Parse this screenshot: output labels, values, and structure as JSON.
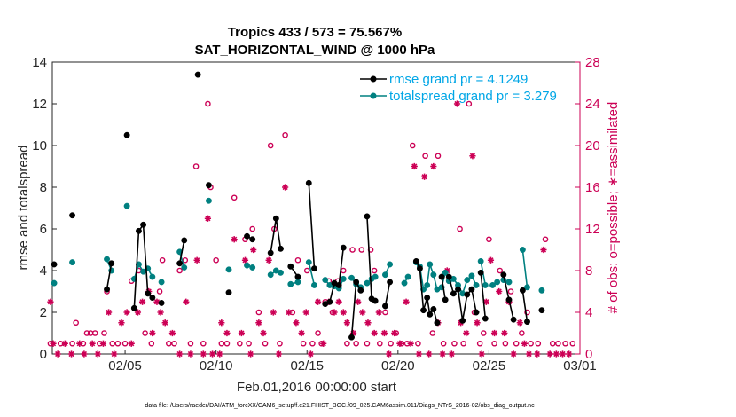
{
  "chart_data": {
    "type": "line",
    "title": "Tropics 433 / 573 = 75.567%",
    "subtitle": "SAT_HORIZONTAL_WIND @ 1000 hPa",
    "xlabel": "Feb.01,2016 00:00:00 start",
    "ylabel_left": "rmse and totalspread",
    "ylabel_right": "# of obs: o=possible; ∗=assimilated",
    "footer": "data file: /Users/raeder/DAI/ATM_forcXX/CAM6_setup/f.e21.FHIST_BGC.f09_025.CAM6assim.011/Diags_NTrS_2016-02/obs_diag_output.nc",
    "xlim": [
      1.0,
      30.0
    ],
    "ylim_left": [
      0,
      14
    ],
    "ylim_right": [
      0,
      28
    ],
    "x_ticks": [
      {
        "day": 5,
        "label": "02/05"
      },
      {
        "day": 10,
        "label": "02/10"
      },
      {
        "day": 15,
        "label": "02/15"
      },
      {
        "day": 20,
        "label": "02/20"
      },
      {
        "day": 25,
        "label": "02/25"
      },
      {
        "day": 30,
        "label": "03/01"
      }
    ],
    "y_ticks_left": [
      0,
      2,
      4,
      6,
      8,
      10,
      12,
      14
    ],
    "y_ticks_right": [
      0,
      4,
      8,
      12,
      16,
      20,
      24,
      28
    ],
    "colors": {
      "rmse": "#000000",
      "spread": "#008080",
      "obs": "#cc0055",
      "legend_text": "#00a6e6"
    },
    "series": [
      {
        "name": "rmse grand pr = 4.1249",
        "segments": [
          [
            [
              1.1,
              4.3
            ]
          ],
          [
            [
              2.1,
              6.65
            ]
          ],
          [
            [
              4.0,
              3.1
            ],
            [
              4.25,
              4.35
            ]
          ],
          [
            [
              5.1,
              10.5
            ]
          ],
          [
            [
              5.5,
              2.2
            ],
            [
              5.75,
              5.9
            ],
            [
              6.0,
              6.2
            ],
            [
              6.25,
              2.9
            ],
            [
              6.5,
              2.7
            ]
          ],
          [
            [
              7.0,
              2.45
            ]
          ],
          [
            [
              8.0,
              4.35
            ],
            [
              8.25,
              5.45
            ]
          ],
          [
            [
              9.0,
              13.4
            ]
          ],
          [
            [
              9.6,
              8.1
            ]
          ],
          [
            [
              10.7,
              2.95
            ]
          ],
          [
            [
              11.7,
              5.65
            ],
            [
              12.0,
              5.5
            ]
          ],
          [
            [
              13.0,
              4.85
            ],
            [
              13.3,
              6.5
            ],
            [
              13.55,
              5.05
            ]
          ],
          [
            [
              14.1,
              4.2
            ],
            [
              14.5,
              3.7
            ]
          ],
          [
            [
              15.1,
              8.2
            ],
            [
              15.4,
              4.1
            ]
          ],
          [
            [
              16.0,
              2.4
            ],
            [
              16.25,
              2.5
            ],
            [
              16.5,
              3.4
            ],
            [
              16.75,
              3.3
            ],
            [
              17.0,
              5.1
            ]
          ],
          [
            [
              17.45,
              0.8
            ],
            [
              17.7,
              3.45
            ],
            [
              17.95,
              3.05
            ]
          ],
          [
            [
              18.3,
              6.6
            ],
            [
              18.55,
              2.65
            ],
            [
              18.75,
              2.55
            ]
          ],
          [
            [
              19.3,
              2.3
            ],
            [
              19.55,
              3.45
            ]
          ],
          [
            [
              21.0,
              4.45
            ],
            [
              21.2,
              4.1
            ],
            [
              21.4,
              2.1
            ],
            [
              21.6,
              2.7
            ],
            [
              21.75,
              1.9
            ],
            [
              21.95,
              2.15
            ],
            [
              22.15,
              1.5
            ]
          ],
          [
            [
              22.4,
              3.7
            ],
            [
              22.6,
              2.6
            ]
          ],
          [
            [
              22.8,
              3.7
            ],
            [
              23.05,
              2.9
            ],
            [
              23.3,
              3.1
            ],
            [
              23.55,
              1.6
            ],
            [
              23.8,
              2.85
            ],
            [
              24.05,
              3.1
            ],
            [
              24.3,
              2.0
            ]
          ],
          [
            [
              24.55,
              3.9
            ],
            [
              24.8,
              1.7
            ]
          ],
          [
            [
              25.8,
              3.8
            ],
            [
              26.1,
              2.6
            ],
            [
              26.35,
              1.65
            ]
          ],
          [
            [
              26.85,
              3.05
            ],
            [
              27.1,
              1.55
            ]
          ],
          [
            [
              27.9,
              2.1
            ]
          ]
        ]
      },
      {
        "name": "totalspread grand pr = 3.279",
        "segments": [
          [
            [
              1.1,
              3.4
            ]
          ],
          [
            [
              2.1,
              4.4
            ]
          ],
          [
            [
              4.0,
              4.55
            ],
            [
              4.25,
              4.0
            ]
          ],
          [
            [
              5.1,
              7.1
            ]
          ],
          [
            [
              5.5,
              3.6
            ],
            [
              5.75,
              4.3
            ],
            [
              6.0,
              3.95
            ],
            [
              6.25,
              4.1
            ],
            [
              6.5,
              3.7
            ]
          ],
          [
            [
              7.0,
              3.45
            ]
          ],
          [
            [
              8.0,
              4.9
            ],
            [
              8.25,
              4.15
            ]
          ],
          [
            [
              9.6,
              7.35
            ]
          ],
          [
            [
              10.7,
              4.05
            ]
          ],
          [
            [
              11.7,
              4.25
            ],
            [
              12.0,
              4.15
            ]
          ],
          [
            [
              13.0,
              3.8
            ],
            [
              13.3,
              4.0
            ],
            [
              13.55,
              3.9
            ]
          ],
          [
            [
              14.1,
              3.35
            ],
            [
              14.5,
              3.45
            ]
          ],
          [
            [
              15.1,
              4.4
            ],
            [
              15.4,
              3.3
            ]
          ],
          [
            [
              16.0,
              3.55
            ],
            [
              16.25,
              3.3
            ],
            [
              16.5,
              3.25
            ],
            [
              16.75,
              3.15
            ],
            [
              17.0,
              3.6
            ]
          ],
          [
            [
              17.45,
              3.65
            ],
            [
              17.7,
              3.35
            ],
            [
              17.95,
              3.2
            ]
          ],
          [
            [
              18.3,
              3.4
            ],
            [
              18.55,
              3.6
            ],
            [
              18.75,
              3.7
            ]
          ],
          [
            [
              19.3,
              3.8
            ],
            [
              19.55,
              4.3
            ]
          ],
          [
            [
              20.35,
              3.4
            ],
            [
              20.55,
              3.7
            ]
          ],
          [
            [
              21.0,
              4.4
            ],
            [
              21.2,
              4.2
            ],
            [
              21.4,
              3.1
            ],
            [
              21.6,
              3.3
            ],
            [
              21.75,
              4.3
            ],
            [
              21.95,
              3.8
            ],
            [
              22.15,
              3.1
            ]
          ],
          [
            [
              22.4,
              3.2
            ],
            [
              22.6,
              3.9
            ]
          ],
          [
            [
              22.8,
              3.5
            ],
            [
              23.05,
              3.6
            ],
            [
              23.3,
              3.3
            ],
            [
              23.55,
              2.9
            ],
            [
              23.8,
              3.55
            ],
            [
              24.05,
              3.75
            ],
            [
              24.3,
              3.3
            ]
          ],
          [
            [
              24.55,
              4.45
            ],
            [
              24.8,
              3.3
            ]
          ],
          [
            [
              25.2,
              3.3
            ],
            [
              25.45,
              3.45
            ]
          ],
          [
            [
              25.8,
              3.55
            ],
            [
              26.1,
              3.45
            ]
          ],
          [
            [
              26.85,
              5.0
            ],
            [
              27.1,
              3.2
            ]
          ],
          [
            [
              27.9,
              3.05
            ]
          ]
        ]
      }
    ],
    "obs_possible": [
      [
        0.9,
        1
      ],
      [
        1.45,
        1
      ],
      [
        2.1,
        1
      ],
      [
        2.3,
        3
      ],
      [
        2.7,
        1
      ],
      [
        2.9,
        2
      ],
      [
        3.1,
        2
      ],
      [
        3.35,
        2
      ],
      [
        3.6,
        1
      ],
      [
        3.85,
        2
      ],
      [
        4.0,
        6
      ],
      [
        4.3,
        1
      ],
      [
        4.6,
        1
      ],
      [
        5.0,
        1
      ],
      [
        5.35,
        7
      ],
      [
        5.75,
        8
      ],
      [
        6.1,
        2
      ],
      [
        6.45,
        1
      ],
      [
        6.9,
        6
      ],
      [
        7.05,
        9
      ],
      [
        7.4,
        1
      ],
      [
        7.7,
        1
      ],
      [
        8.0,
        8
      ],
      [
        8.3,
        9
      ],
      [
        8.6,
        1
      ],
      [
        8.9,
        18
      ],
      [
        9.3,
        1
      ],
      [
        9.55,
        24
      ],
      [
        9.7,
        16
      ],
      [
        10.0,
        9
      ],
      [
        10.3,
        1
      ],
      [
        10.6,
        1
      ],
      [
        11.0,
        15
      ],
      [
        11.3,
        1
      ],
      [
        11.6,
        11
      ],
      [
        11.8,
        1
      ],
      [
        12.0,
        12
      ],
      [
        12.35,
        4
      ],
      [
        12.7,
        1
      ],
      [
        13.0,
        20
      ],
      [
        13.2,
        12
      ],
      [
        13.5,
        1
      ],
      [
        13.8,
        21
      ],
      [
        14.2,
        4
      ],
      [
        14.5,
        9
      ],
      [
        14.8,
        1
      ],
      [
        15.0,
        8
      ],
      [
        15.3,
        1
      ],
      [
        15.6,
        2
      ],
      [
        15.8,
        1
      ],
      [
        16.0,
        5
      ],
      [
        16.2,
        7
      ],
      [
        16.4,
        4
      ],
      [
        16.7,
        7
      ],
      [
        17.0,
        8
      ],
      [
        17.2,
        1
      ],
      [
        17.5,
        10
      ],
      [
        17.7,
        1
      ],
      [
        18.0,
        10
      ],
      [
        18.3,
        1
      ],
      [
        18.5,
        10
      ],
      [
        18.7,
        8
      ],
      [
        19.0,
        1
      ],
      [
        19.3,
        4
      ],
      [
        19.6,
        1
      ],
      [
        19.9,
        2
      ],
      [
        20.2,
        1
      ],
      [
        20.5,
        1
      ],
      [
        20.8,
        20
      ],
      [
        21.1,
        1
      ],
      [
        21.5,
        19
      ],
      [
        21.9,
        2
      ],
      [
        22.2,
        19
      ],
      [
        22.5,
        1
      ],
      [
        22.8,
        7
      ],
      [
        23.1,
        1
      ],
      [
        23.4,
        12
      ],
      [
        23.6,
        1
      ],
      [
        23.9,
        24
      ],
      [
        24.2,
        4
      ],
      [
        24.5,
        1
      ],
      [
        24.7,
        2
      ],
      [
        25.0,
        11
      ],
      [
        25.3,
        1
      ],
      [
        25.6,
        8
      ],
      [
        25.9,
        1
      ],
      [
        26.2,
        6
      ],
      [
        26.5,
        1
      ],
      [
        26.8,
        2
      ],
      [
        27.1,
        4
      ],
      [
        27.3,
        1
      ],
      [
        27.7,
        1
      ],
      [
        28.1,
        11
      ],
      [
        28.5,
        1
      ],
      [
        28.8,
        1
      ],
      [
        29.2,
        1
      ],
      [
        29.6,
        1
      ]
    ],
    "obs_assimilated": [
      [
        0.9,
        5
      ],
      [
        1.05,
        1
      ],
      [
        1.3,
        0
      ],
      [
        1.7,
        1
      ],
      [
        2.05,
        0
      ],
      [
        2.5,
        1
      ],
      [
        2.75,
        0
      ],
      [
        3.2,
        1
      ],
      [
        3.5,
        0
      ],
      [
        3.8,
        1
      ],
      [
        4.1,
        4
      ],
      [
        4.4,
        0
      ],
      [
        4.8,
        3
      ],
      [
        5.1,
        4
      ],
      [
        5.35,
        1
      ],
      [
        5.7,
        4
      ],
      [
        5.95,
        5
      ],
      [
        6.3,
        6
      ],
      [
        6.5,
        2
      ],
      [
        6.75,
        5
      ],
      [
        6.95,
        4
      ],
      [
        7.2,
        3
      ],
      [
        7.6,
        2
      ],
      [
        8.0,
        0
      ],
      [
        8.35,
        5
      ],
      [
        8.6,
        0
      ],
      [
        8.95,
        9
      ],
      [
        9.3,
        0
      ],
      [
        9.55,
        13
      ],
      [
        9.8,
        0
      ],
      [
        10.2,
        0
      ],
      [
        10.3,
        3
      ],
      [
        10.6,
        2
      ],
      [
        11.0,
        11
      ],
      [
        11.4,
        2
      ],
      [
        11.6,
        9
      ],
      [
        11.9,
        0
      ],
      [
        12.05,
        10
      ],
      [
        12.35,
        3
      ],
      [
        12.6,
        2
      ],
      [
        12.9,
        9
      ],
      [
        13.15,
        4
      ],
      [
        13.45,
        0
      ],
      [
        13.8,
        16
      ],
      [
        14.0,
        4
      ],
      [
        14.4,
        3
      ],
      [
        14.7,
        2
      ],
      [
        14.95,
        4
      ],
      [
        15.2,
        0
      ],
      [
        15.6,
        5
      ],
      [
        15.9,
        1
      ],
      [
        16.2,
        5
      ],
      [
        16.5,
        4
      ],
      [
        16.75,
        5
      ],
      [
        17.0,
        4
      ],
      [
        17.2,
        3
      ],
      [
        17.55,
        2
      ],
      [
        17.8,
        5
      ],
      [
        18.05,
        4
      ],
      [
        18.35,
        3
      ],
      [
        18.7,
        2
      ],
      [
        18.95,
        4
      ],
      [
        19.25,
        2
      ],
      [
        19.5,
        0
      ],
      [
        19.8,
        2
      ],
      [
        20.1,
        1
      ],
      [
        20.45,
        5
      ],
      [
        20.7,
        1
      ],
      [
        20.9,
        18
      ],
      [
        21.15,
        0
      ],
      [
        21.45,
        17
      ],
      [
        21.7,
        0
      ],
      [
        21.95,
        18
      ],
      [
        22.2,
        3
      ],
      [
        22.45,
        0
      ],
      [
        22.7,
        8
      ],
      [
        22.95,
        0
      ],
      [
        23.25,
        24
      ],
      [
        23.45,
        3
      ],
      [
        23.75,
        2
      ],
      [
        24.1,
        19
      ],
      [
        24.35,
        3
      ],
      [
        24.6,
        0
      ],
      [
        24.85,
        5
      ],
      [
        25.1,
        9
      ],
      [
        25.3,
        2
      ],
      [
        25.55,
        6
      ],
      [
        25.85,
        2
      ],
      [
        26.1,
        5
      ],
      [
        26.35,
        0
      ],
      [
        26.7,
        3
      ],
      [
        26.95,
        1
      ],
      [
        27.2,
        0
      ],
      [
        27.65,
        0
      ],
      [
        28.0,
        10
      ],
      [
        28.35,
        0
      ],
      [
        28.7,
        0
      ],
      [
        29.05,
        0
      ],
      [
        29.4,
        0
      ]
    ]
  }
}
